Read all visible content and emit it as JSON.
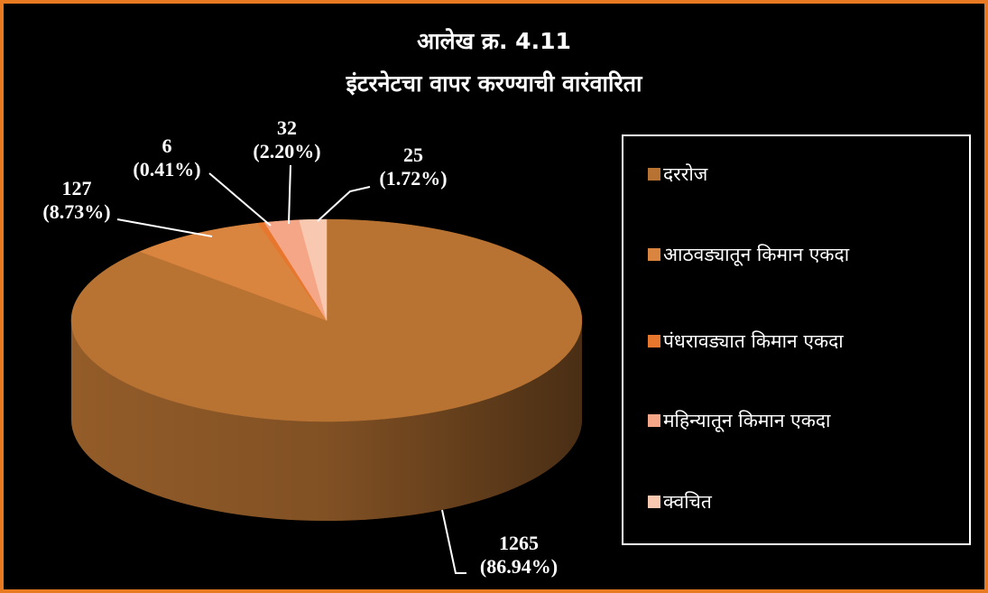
{
  "chart_data": {
    "type": "pie",
    "title": "आलेख क्र. 4.11",
    "subtitle": "इंटरनेटचा वापर करण्याची वारंवारिता",
    "categories": [
      "दररोज",
      "आठवड्यातून किमान एकदा",
      "पंधरावड्यात किमान एकदा",
      "महिन्यातून किमान एकदा",
      "क्वचित"
    ],
    "values": [
      1265,
      127,
      6,
      32,
      25
    ],
    "value_labels": [
      "1265\n(86.94%)",
      "127\n(8.73%)",
      "6\n(0.41%)",
      "32\n(2.20%)",
      "25\n(1.72%)"
    ],
    "colors": [
      "#b87333",
      "#d9843f",
      "#e8772e",
      "#f4a686",
      "#f8c9b0"
    ],
    "legend": "right"
  }
}
